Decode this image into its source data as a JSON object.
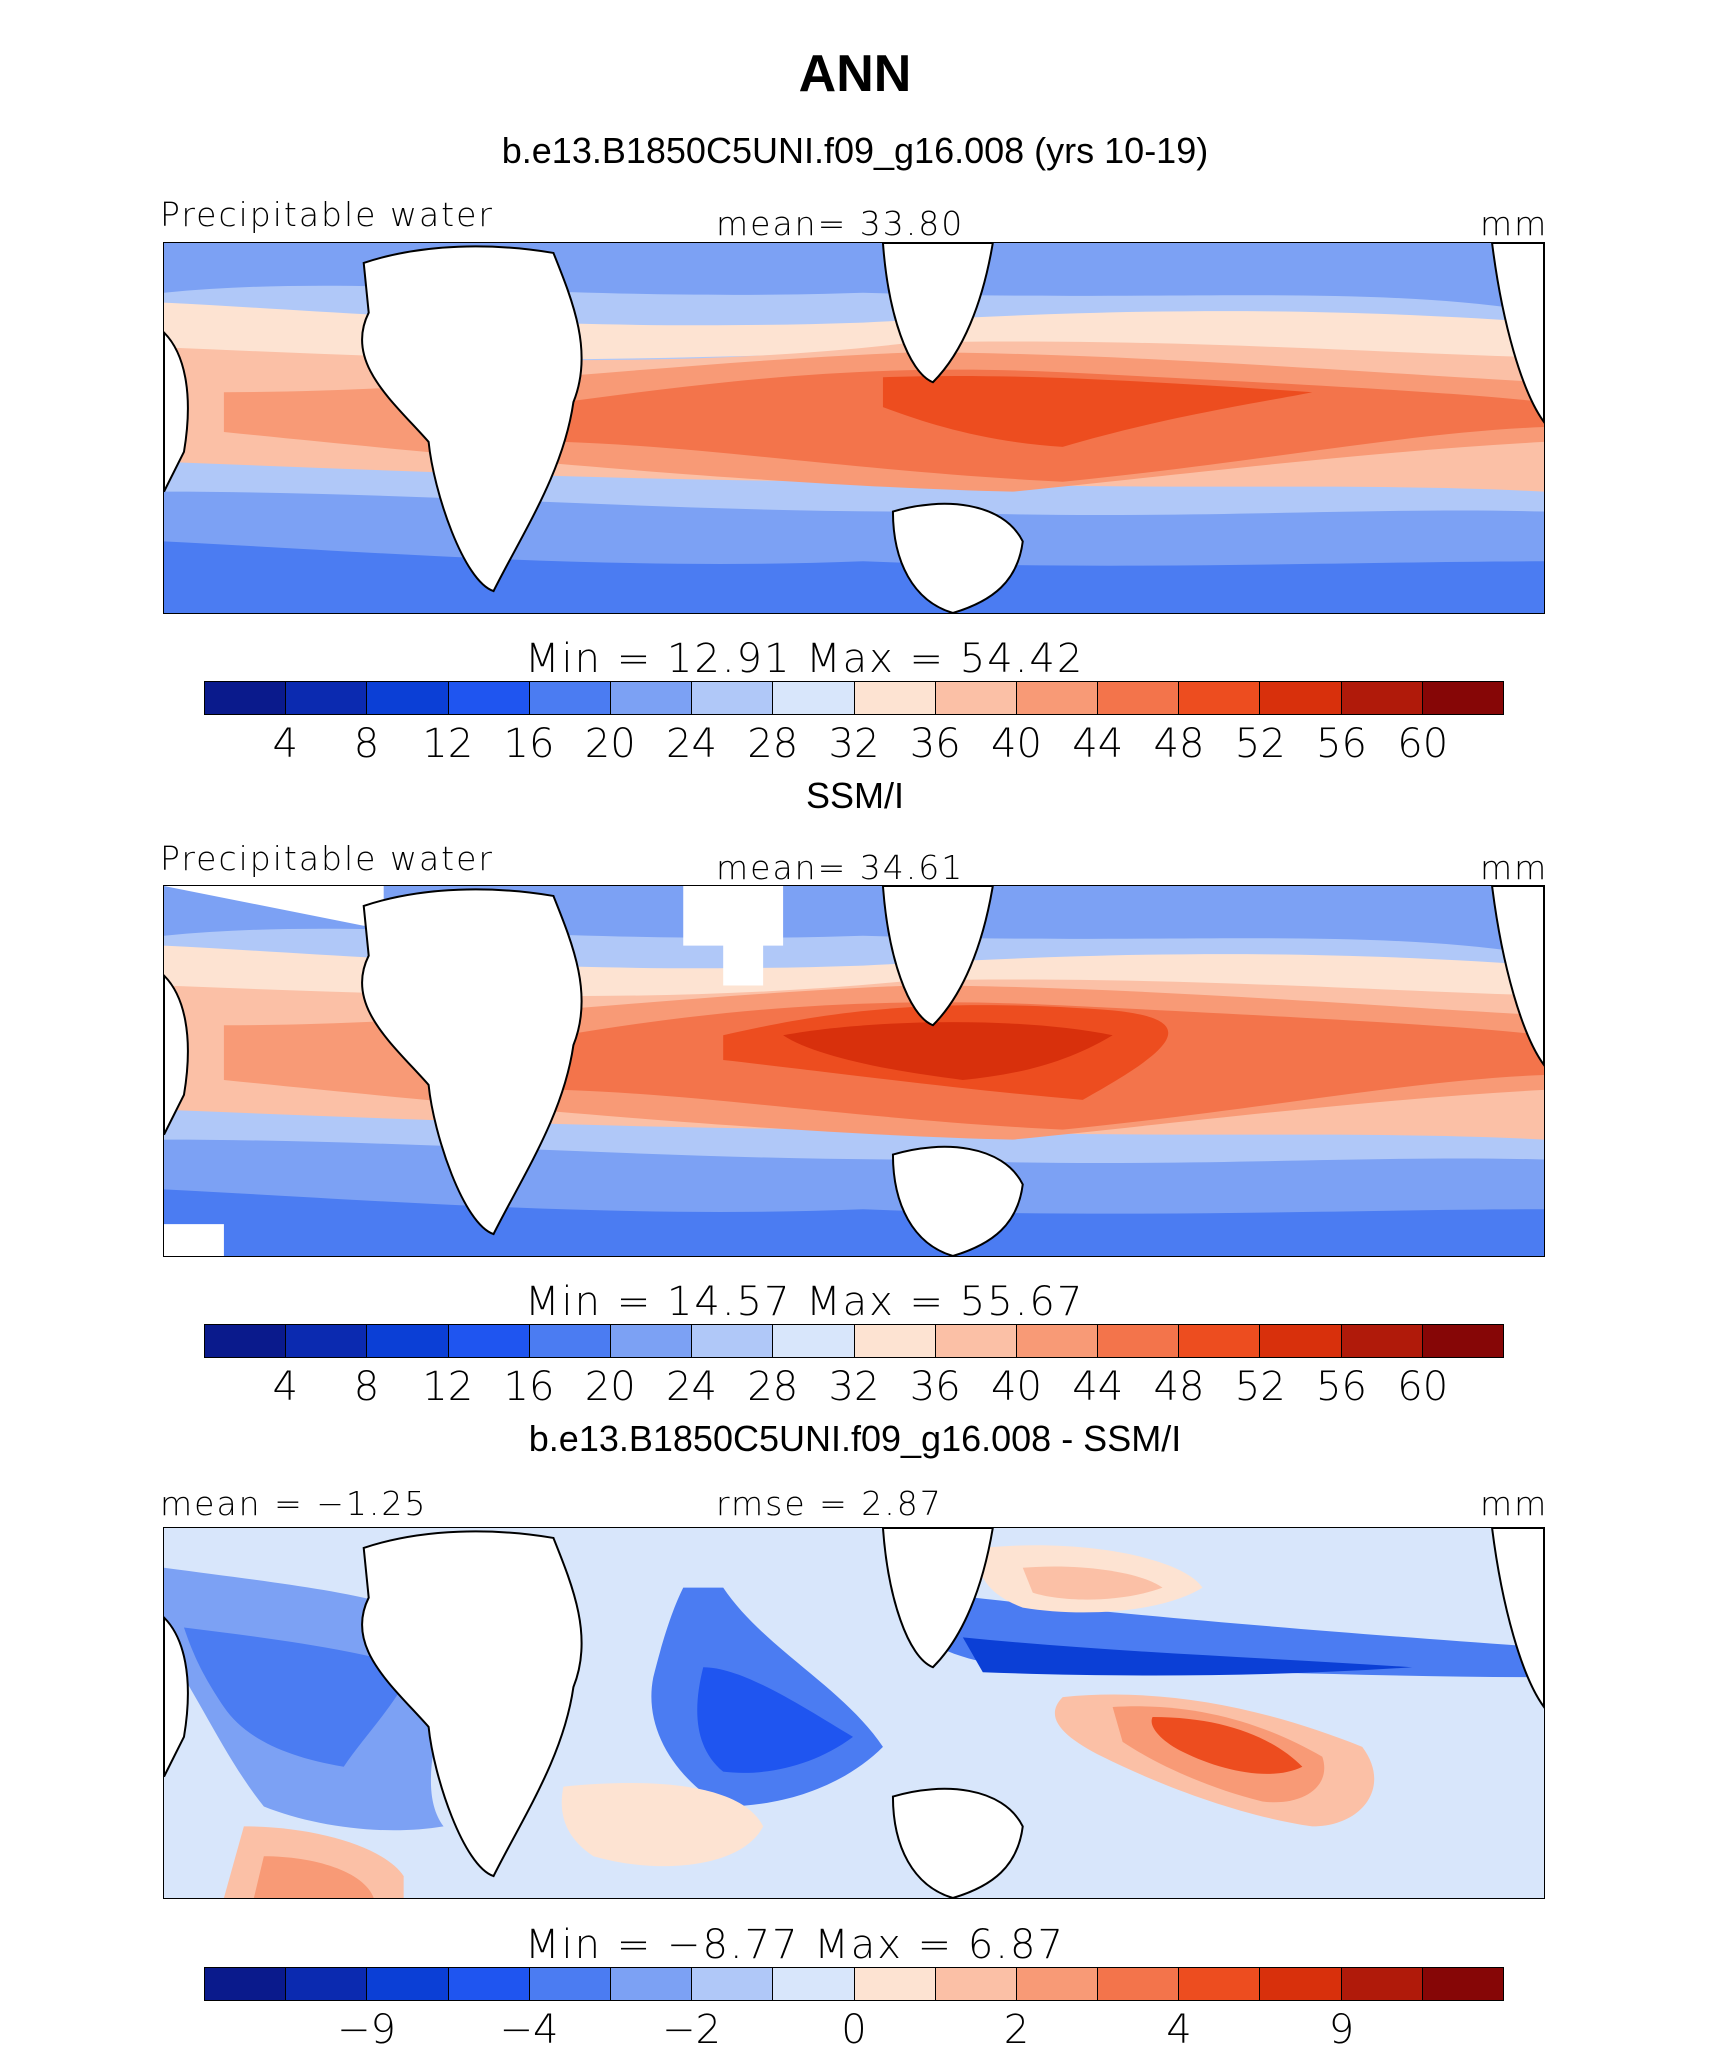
{
  "title": "ANN",
  "palette": [
    "#0a1a8c",
    "#0b2ab0",
    "#0b3fd6",
    "#1f55f0",
    "#4b7cf2",
    "#7ca1f4",
    "#b0c8f8",
    "#d8e6fb",
    "#fde3d2",
    "#fbc0a6",
    "#f89a76",
    "#f3744b",
    "#ed4d1f",
    "#d8300c",
    "#b01a0a",
    "#860606"
  ],
  "panels": [
    {
      "title": "b.e13.B1850C5UNI.f09_g16.008 (yrs 10-19)",
      "left_label": "Precipitable water",
      "center_label": "mean=   33.80",
      "right_label": "mm",
      "minmax": "Min  =    12.91  Max  =    54.42",
      "ticks": [
        "4",
        "8",
        "12",
        "16",
        "20",
        "24",
        "28",
        "32",
        "36",
        "40",
        "44",
        "48",
        "52",
        "56",
        "60"
      ]
    },
    {
      "title": "SSM/I",
      "left_label": "Precipitable water",
      "center_label": "mean=   34.61",
      "right_label": "mm",
      "minmax": "Min  =    14.57  Max  =    55.67",
      "ticks": [
        "4",
        "8",
        "12",
        "16",
        "20",
        "24",
        "28",
        "32",
        "36",
        "40",
        "44",
        "48",
        "52",
        "56",
        "60"
      ]
    },
    {
      "title": "b.e13.B1850C5UNI.f09_g16.008 - SSM/I",
      "left_label": "mean =   −1.25",
      "center_label": "rmse  =    2.87",
      "right_label": "mm",
      "minmax": "Min  =   −8.77  Max  =     6.87",
      "ticks": [
        "−9",
        "−4",
        "−2",
        "0",
        "2",
        "4",
        "9"
      ]
    }
  ]
}
